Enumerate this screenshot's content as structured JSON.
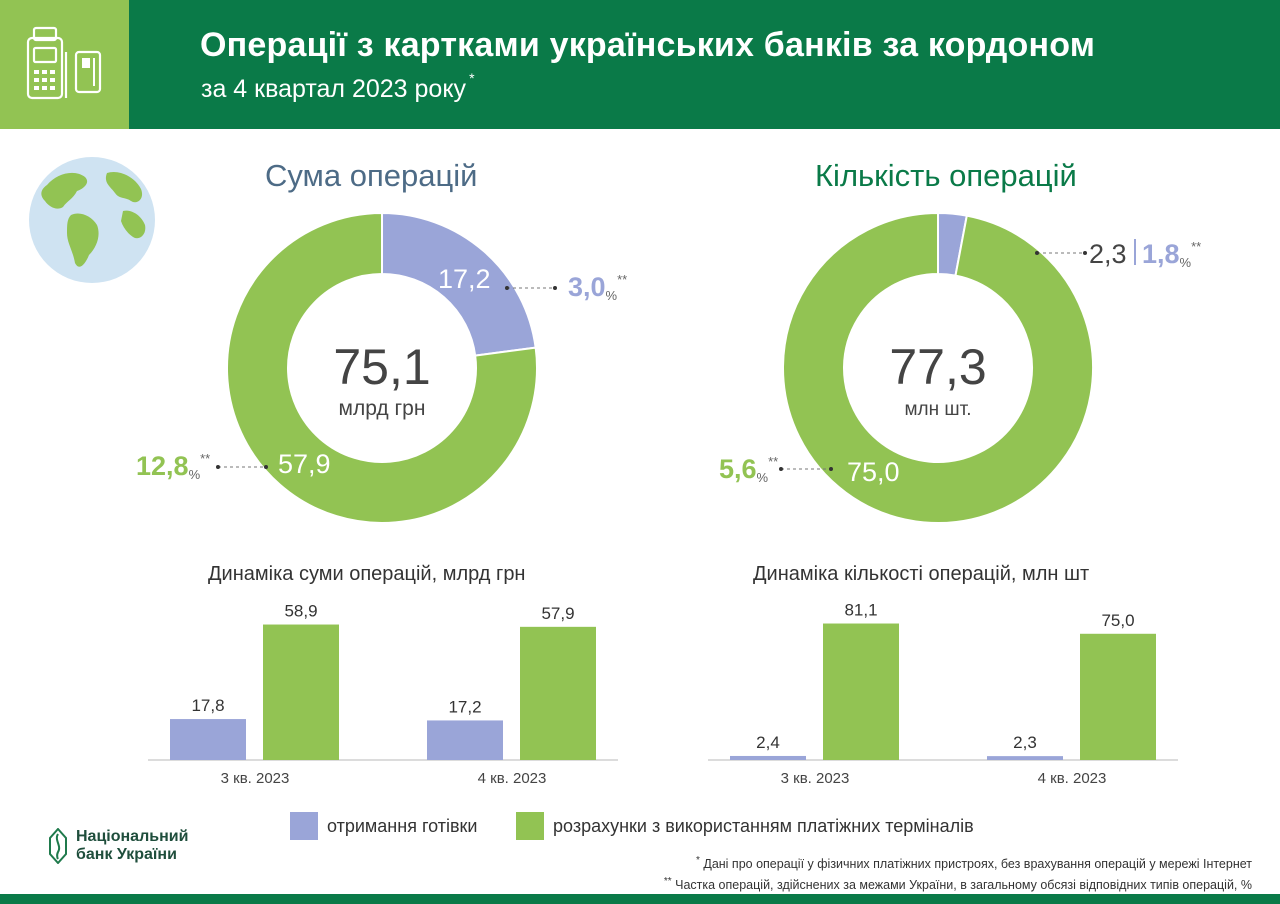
{
  "header": {
    "title": "Операції з картками українських банків за кордоном",
    "subtitle": "за 4 квартал 2023 року",
    "subtitle_mark": "*"
  },
  "colors": {
    "cash": "#9aa5d8",
    "terminals": "#92c353",
    "header_green": "#0a7a48",
    "light_green": "#92c353",
    "sum_title": "#4d6b86",
    "text": "#333333"
  },
  "icons": [
    "pos-terminal-icon",
    "card-icon",
    "globe-icon",
    "nbu-logo-icon"
  ],
  "chart_data": [
    {
      "type": "pie",
      "subtype": "donut",
      "title": "Сума операцій",
      "center_value": "75,1",
      "center_unit": "млрд грн",
      "categories": [
        "отримання готівки",
        "розрахунки з використанням платіжних терміналів"
      ],
      "values": [
        17.2,
        57.9
      ],
      "value_labels": [
        "17,2",
        "57,9"
      ],
      "share_labels": [
        "3,0",
        "12,8"
      ],
      "share_unit": "%",
      "share_mark": "**"
    },
    {
      "type": "pie",
      "subtype": "donut",
      "title": "Кількість операцій",
      "center_value": "77,3",
      "center_unit": "млн шт.",
      "categories": [
        "отримання готівки",
        "розрахунки з використанням платіжних терміналів"
      ],
      "values": [
        2.3,
        75.0
      ],
      "value_labels": [
        "2,3",
        "75,0"
      ],
      "share_labels": [
        "1,8",
        "5,6"
      ],
      "share_unit": "%",
      "share_mark": "**"
    },
    {
      "type": "bar",
      "title": "Динаміка суми операцій, млрд грн",
      "categories": [
        "3 кв. 2023",
        "4 кв. 2023"
      ],
      "series": [
        {
          "name": "отримання готівки",
          "values": [
            17.8,
            17.2
          ],
          "labels": [
            "17,8",
            "17,2"
          ]
        },
        {
          "name": "розрахунки з використанням платіжних терміналів",
          "values": [
            58.9,
            57.9
          ],
          "labels": [
            "58,9",
            "57,9"
          ]
        }
      ],
      "ylim": [
        0,
        60
      ]
    },
    {
      "type": "bar",
      "title": "Динаміка кількості операцій, млн шт",
      "categories": [
        "3 кв. 2023",
        "4 кв. 2023"
      ],
      "series": [
        {
          "name": "отримання готівки",
          "values": [
            2.4,
            2.3
          ],
          "labels": [
            "2,4",
            "2,3"
          ]
        },
        {
          "name": "розрахунки з використанням платіжних терміналів",
          "values": [
            81.1,
            75.0
          ],
          "labels": [
            "81,1",
            "75,0"
          ]
        }
      ],
      "ylim": [
        0,
        82
      ]
    }
  ],
  "legend": {
    "cash": "отримання готівки",
    "terminals": "розрахунки з використанням платіжних терміналів"
  },
  "logo": {
    "line1": "Національний",
    "line2": "банк України"
  },
  "footnotes": [
    {
      "mark": "*",
      "text": "Дані про операції у фізичних платіжних пристроях, без врахування операцій у мережі Інтернет"
    },
    {
      "mark": "**",
      "text": "Частка операцій, здійснених за межами України, в загальному обсязі відповідних типів операцій, %"
    }
  ]
}
